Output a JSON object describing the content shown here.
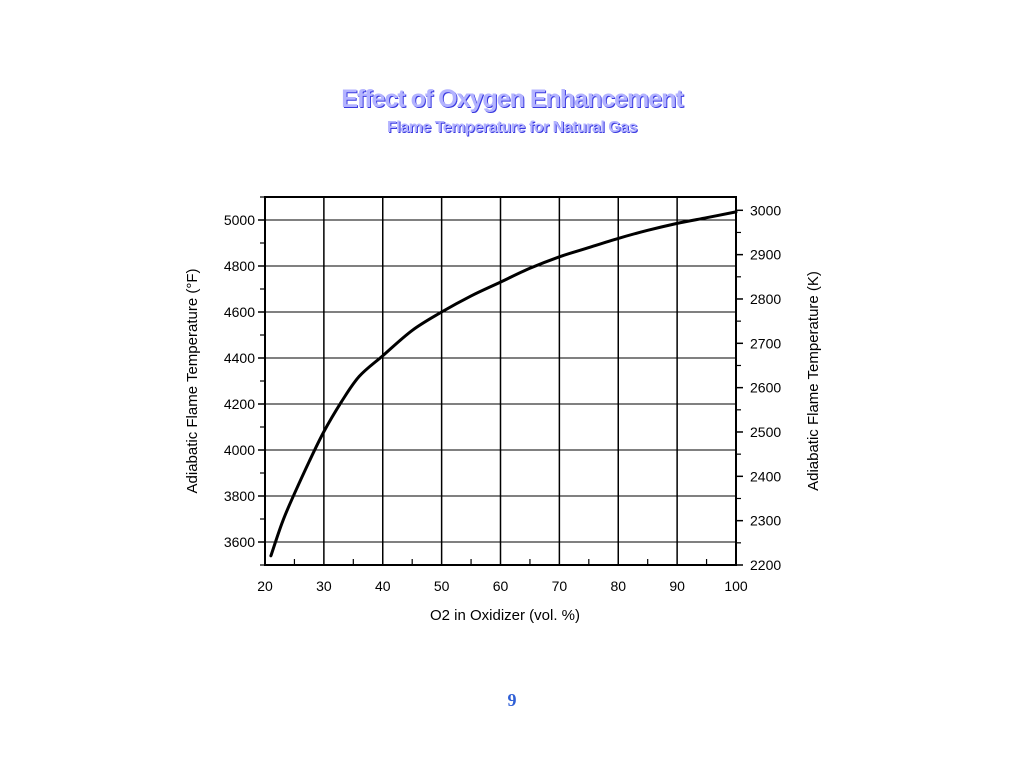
{
  "slide": {
    "title": "Effect of Oxygen Enhancement",
    "subtitle": "Flame Temperature for Natural Gas",
    "page_number": "9",
    "title_color": "#b3b3ff",
    "page_number_color": "#2f5fd6"
  },
  "chart_data": {
    "type": "line",
    "xlabel": "O2 in Oxidizer (vol. %)",
    "ylabel": "Adiabatic Flame Temperature (°F)",
    "y2label": "Adiabatic Flame Temperature (K)",
    "xlim": [
      20,
      100
    ],
    "ylim": [
      3500,
      5100
    ],
    "y2lim": [
      2200,
      3030
    ],
    "x_ticks": [
      "20",
      "30",
      "40",
      "50",
      "60",
      "70",
      "80",
      "90",
      "100"
    ],
    "y_ticks": [
      "3600",
      "3800",
      "4000",
      "4200",
      "4400",
      "4600",
      "4800",
      "5000"
    ],
    "y2_ticks": [
      "2200",
      "2300",
      "2400",
      "2500",
      "2600",
      "2700",
      "2800",
      "2900",
      "3000"
    ],
    "grid": true,
    "series": [
      {
        "x": [
          21,
          23,
          25,
          27.5,
          30,
          33,
          36,
          40,
          45,
          50,
          55,
          60,
          65,
          70,
          75,
          80,
          85,
          90,
          95,
          100
        ],
        "y": [
          3540,
          3690,
          3810,
          3950,
          4080,
          4210,
          4320,
          4410,
          4520,
          4600,
          4670,
          4730,
          4790,
          4840,
          4880,
          4920,
          4955,
          4985,
          5010,
          5035
        ]
      }
    ]
  }
}
